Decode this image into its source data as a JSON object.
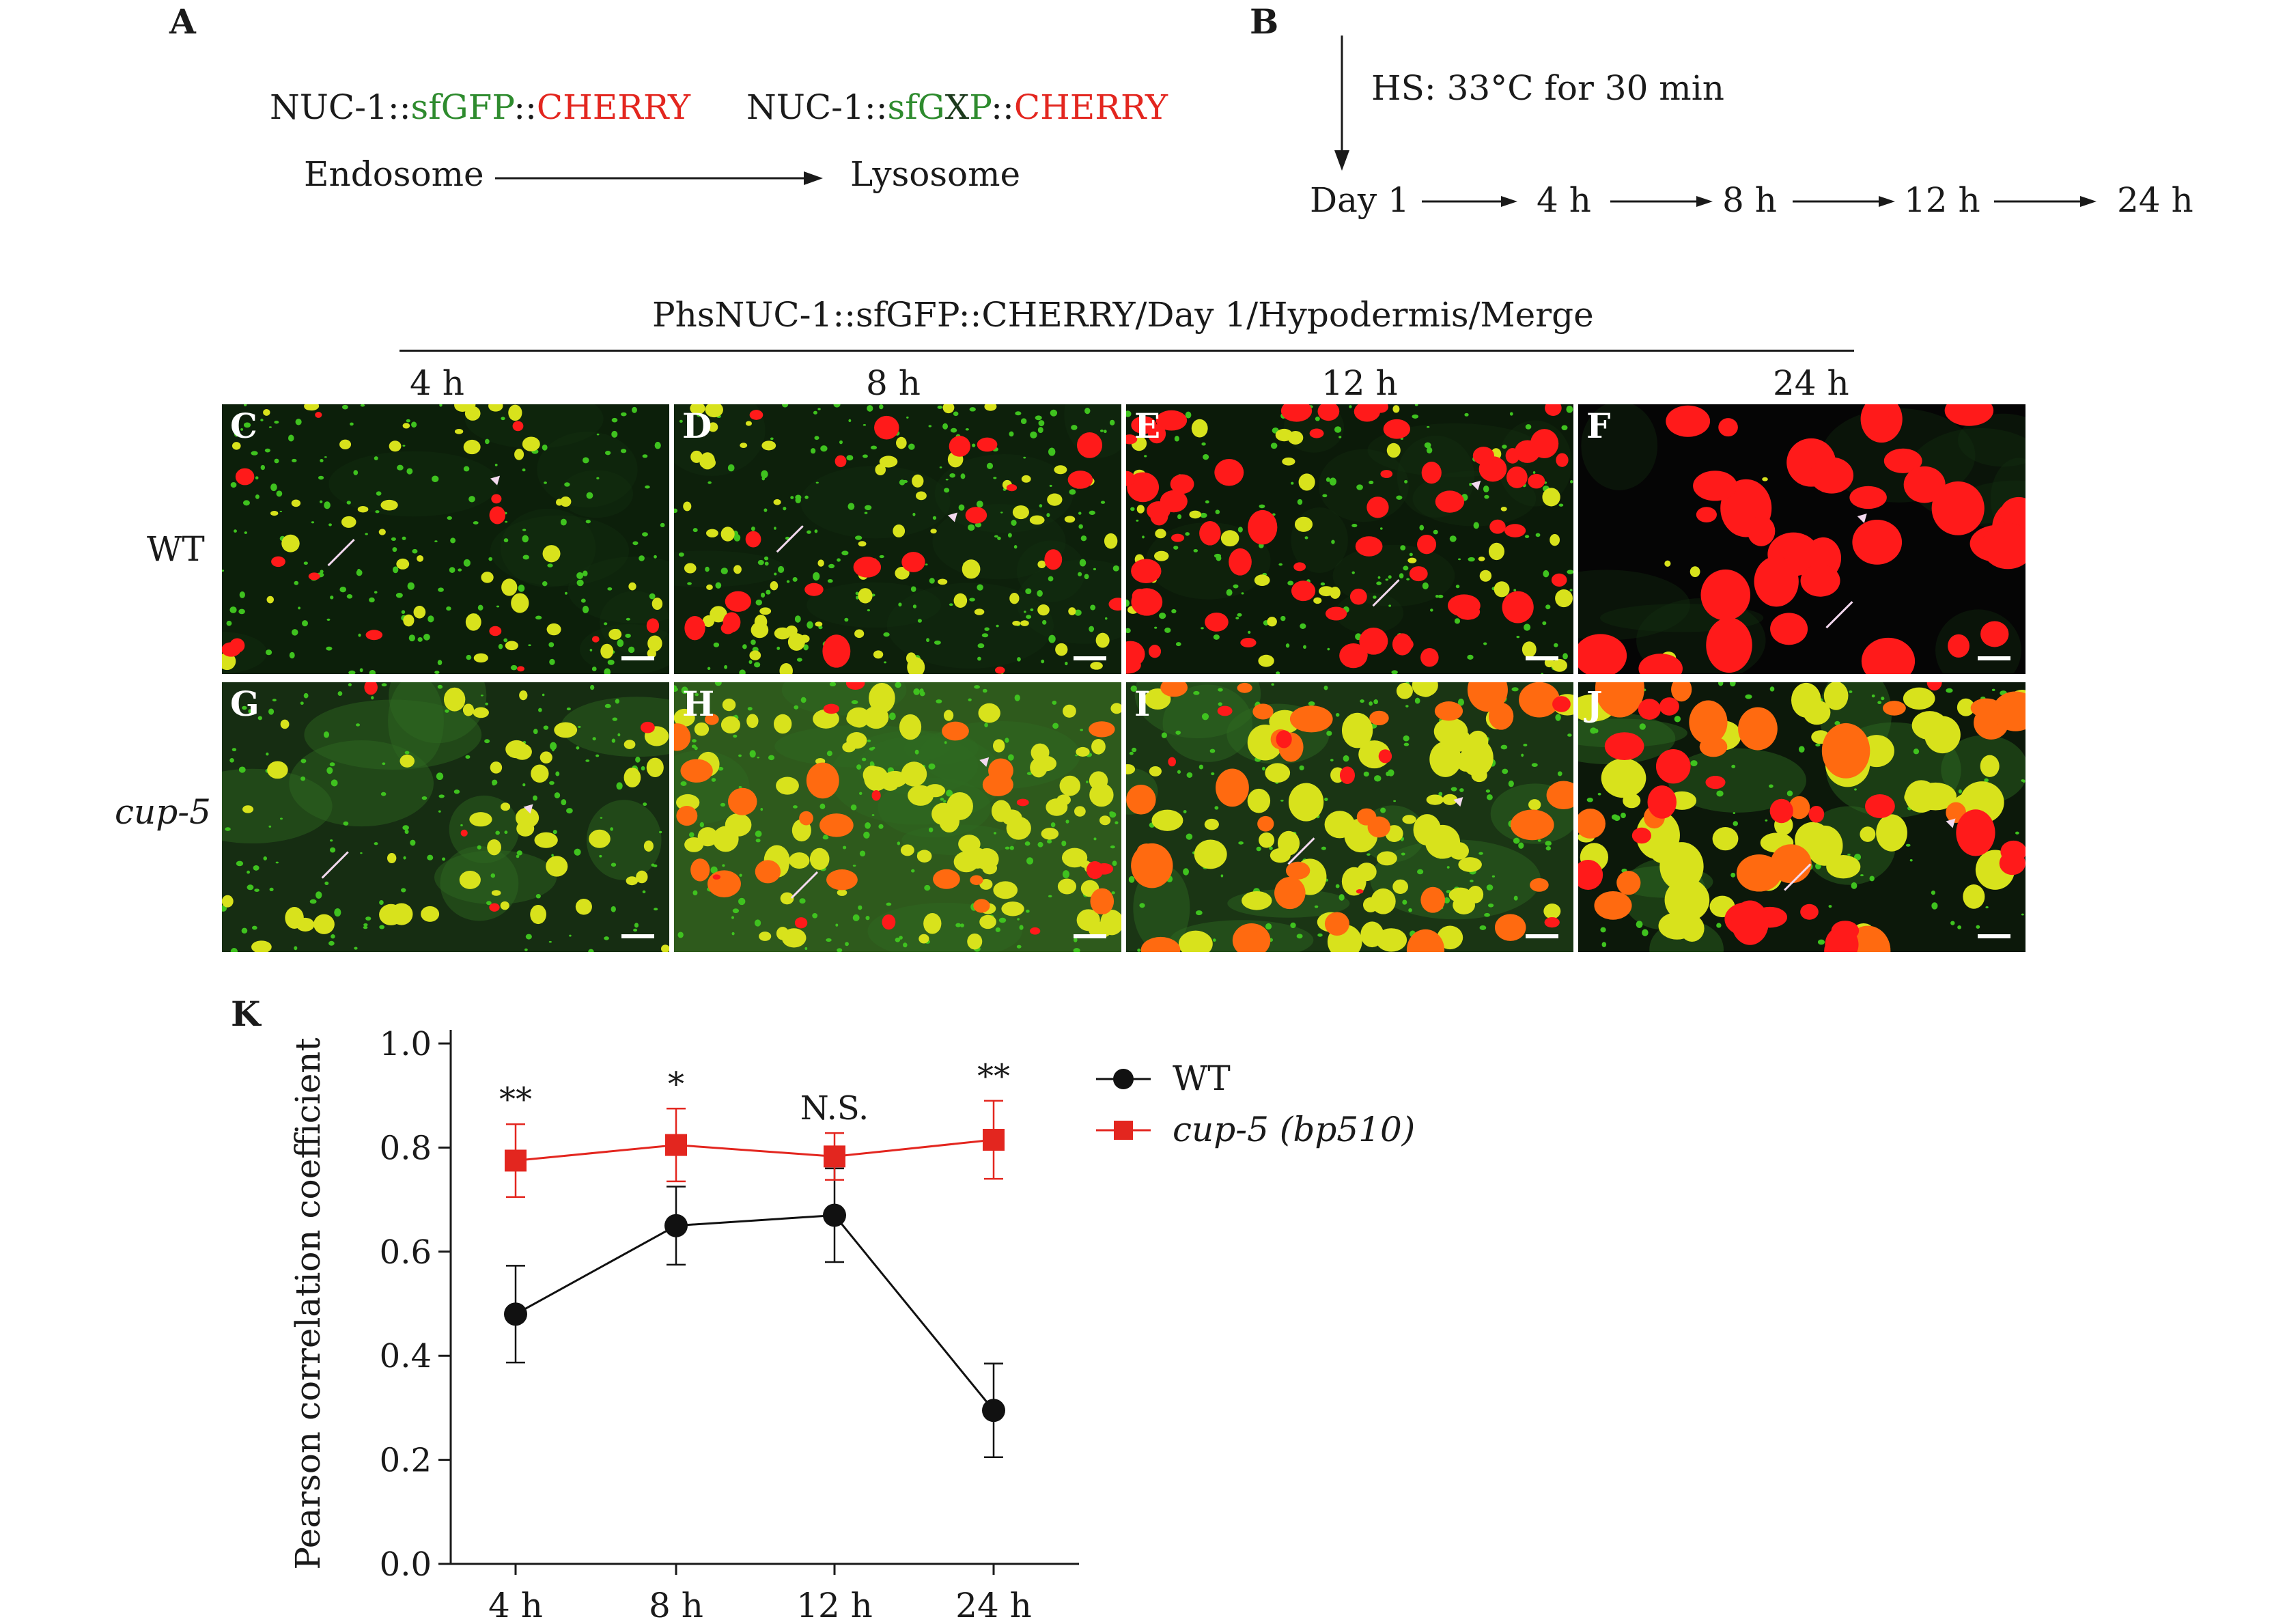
{
  "panelA": {
    "label": "A",
    "construct_left": {
      "prefix": "NUC-1::",
      "gfp": "sfGFP",
      "sep": "::",
      "cherry": "CHERRY"
    },
    "construct_right": {
      "prefix": "NUC-1::",
      "gfp_a": "sfG",
      "gfp_x": "X",
      "gfp_b": "P",
      "sep": "::",
      "cherry": "CHERRY"
    },
    "from": "Endosome",
    "to": "Lysosome"
  },
  "panelB": {
    "label": "B",
    "treatment": "HS: 33°C for 30 min",
    "timeline": [
      "Day 1",
      "4 h",
      "8 h",
      "12 h",
      "24 h"
    ]
  },
  "microscopy": {
    "header": "PhsNUC-1::sfGFP::CHERRY/Day 1/Hypodermis/Merge",
    "time_labels": [
      "4 h",
      "8 h",
      "12 h",
      "24 h"
    ],
    "row_labels": [
      "WT",
      "cup-5"
    ],
    "panels_row1": [
      "C",
      "D",
      "E",
      "F"
    ],
    "panels_row2": [
      "G",
      "H",
      "I",
      "J"
    ],
    "colors": {
      "green": "#3fc21f",
      "red": "#ff1a1a",
      "yellow": "#d8e21c",
      "orange": "#ff6a10"
    }
  },
  "panelK": {
    "label": "K",
    "chart_data": {
      "type": "line",
      "ylabel": "Pearson correlation coefficient",
      "xlabel": "",
      "categories": [
        "4 h",
        "8 h",
        "12 h",
        "24 h"
      ],
      "ylim": [
        0.0,
        1.0
      ],
      "yticks": [
        "0.0",
        "0.2",
        "0.4",
        "0.6",
        "0.8",
        "1.0"
      ],
      "series": [
        {
          "name": "WT",
          "color": "#111111",
          "marker": "circle",
          "values": [
            0.48,
            0.65,
            0.67,
            0.295
          ],
          "errors": [
            0.093,
            0.075,
            0.09,
            0.09
          ]
        },
        {
          "name": "cup-5 (bp510)",
          "color": "#e3261f",
          "marker": "square",
          "values": [
            0.775,
            0.805,
            0.783,
            0.815
          ],
          "errors": [
            0.07,
            0.07,
            0.045,
            0.075
          ]
        }
      ],
      "significance": [
        "**",
        "*",
        "N.S.",
        "**"
      ],
      "legend_position": "top-right"
    }
  }
}
